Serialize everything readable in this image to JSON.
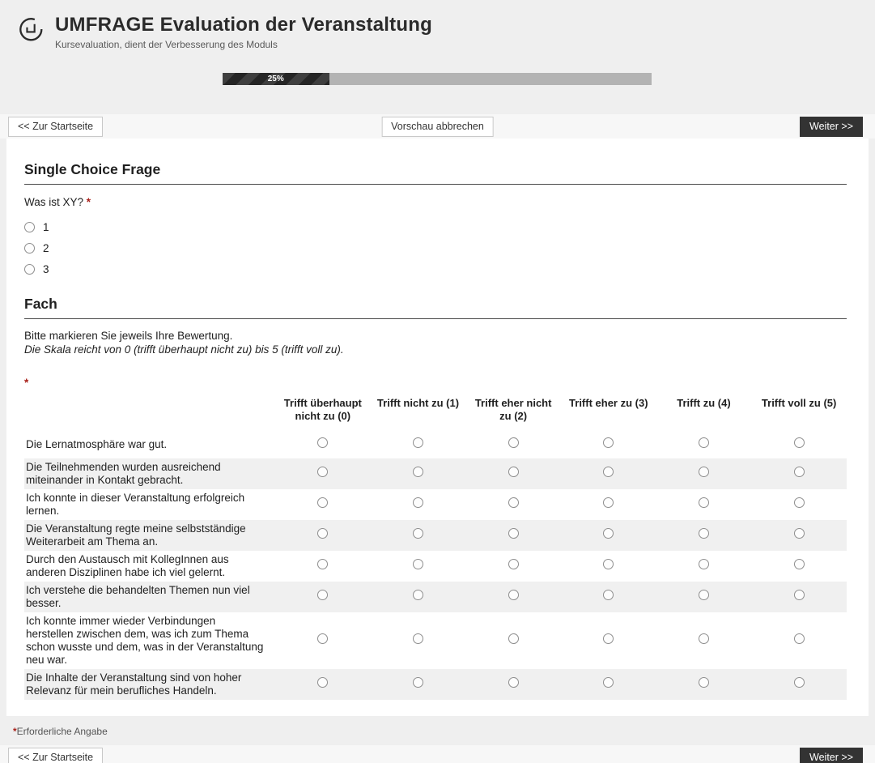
{
  "header": {
    "title": "UMFRAGE Evaluation der Veranstaltung",
    "subtitle": "Kursevaluation, dient der Verbesserung des Moduls"
  },
  "progress": {
    "percent": 25,
    "label": "25%"
  },
  "nav": {
    "back_label": "<< Zur Startseite",
    "cancel_preview_label": "Vorschau abbrechen",
    "next_label": "Weiter >>"
  },
  "single_choice": {
    "heading": "Single Choice Frage",
    "question": "Was ist XY?",
    "required_mark": "*",
    "options": [
      "1",
      "2",
      "3"
    ]
  },
  "matrix": {
    "heading": "Fach",
    "instruction": "Bitte markieren Sie jeweils Ihre Bewertung.",
    "scale_note": "Die Skala reicht von 0 (trifft überhaupt nicht zu) bis 5 (trifft voll zu).",
    "required_mark": "*",
    "columns": [
      "Trifft überhaupt nicht zu (0)",
      "Trifft nicht zu (1)",
      "Trifft eher nicht zu (2)",
      "Trifft eher zu (3)",
      "Trifft zu (4)",
      "Trifft voll zu (5)"
    ],
    "rows": [
      "Die Lernatmosphäre war gut.",
      "Die Teilnehmenden wurden ausreichend miteinander in Kontakt gebracht.",
      "Ich konnte in dieser Veranstaltung erfolgreich lernen.",
      "Die Veranstaltung regte meine selbstständige Weiterarbeit am Thema an.",
      "Durch den Austausch mit KollegInnen aus anderen Disziplinen habe ich viel gelernt.",
      "Ich verstehe die behandelten Themen nun viel besser.",
      "Ich konnte immer wieder Verbindungen herstellen zwischen dem, was ich zum Thema schon wusste und dem, was in der Veranstaltung neu war.",
      "Die Inhalte der Veranstaltung sind von hoher Relevanz für mein berufliches Handeln."
    ]
  },
  "footer": {
    "required_mark": "*",
    "required_note": "Erforderliche Angabe"
  },
  "colors": {
    "required_red": "#a8201a",
    "dark_button": "#333333",
    "progress_fill_dark": "#3f3f3f",
    "progress_stripe": "#252525",
    "progress_track": "#b3b3b3",
    "row_stripe": "#f0f0f0"
  }
}
